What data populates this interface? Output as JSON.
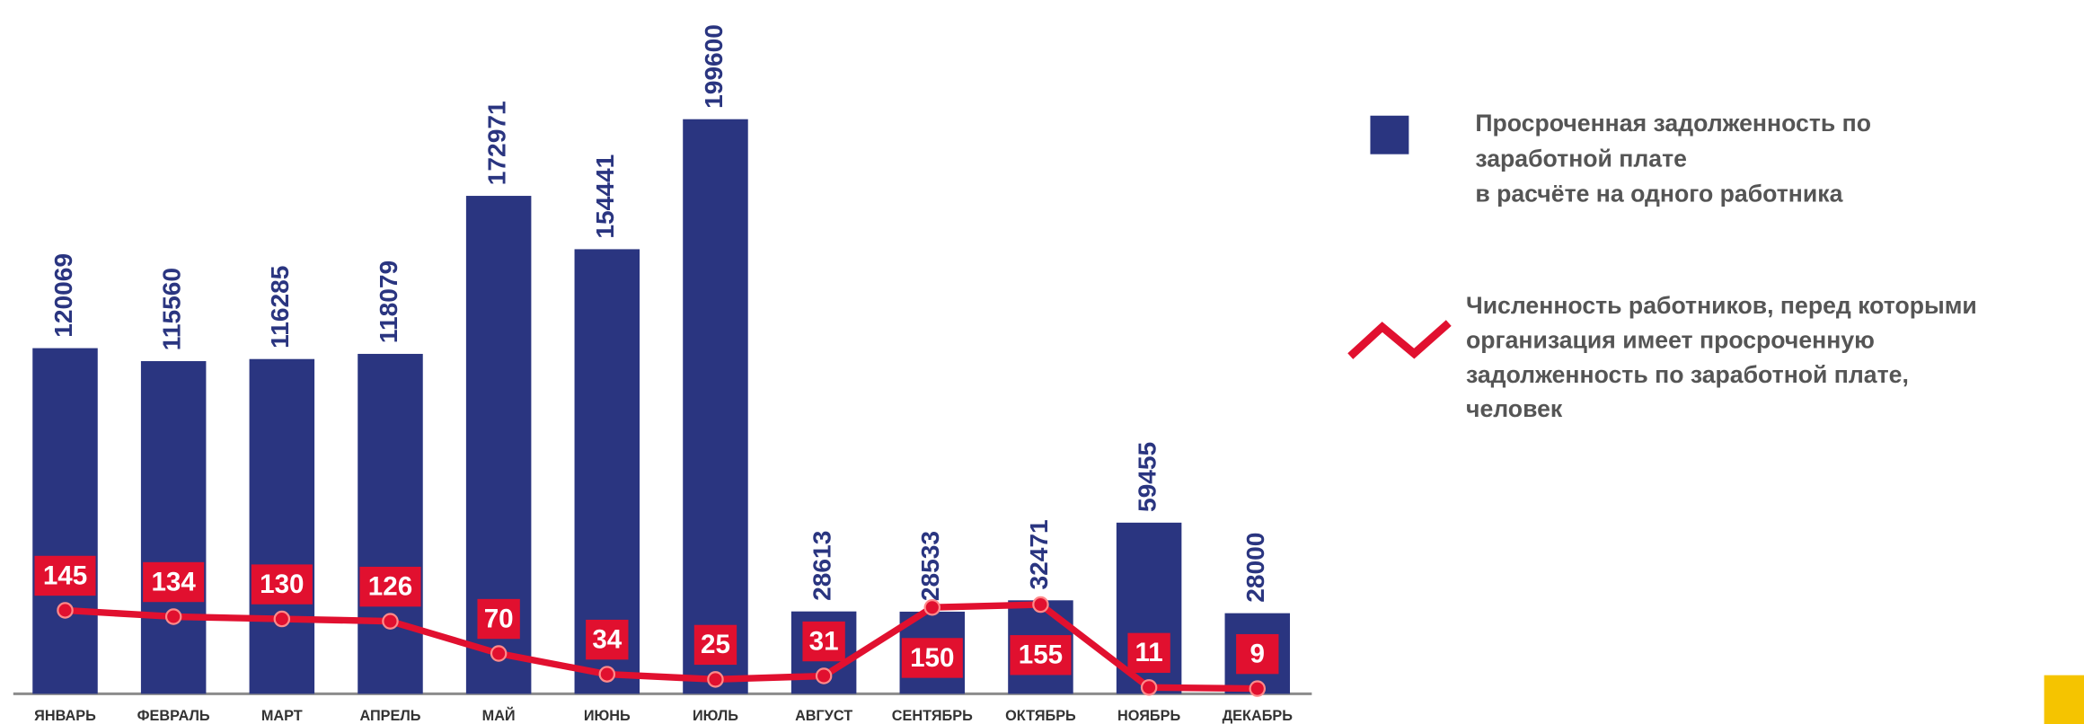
{
  "chart_data": {
    "type": "bar+line",
    "categories": [
      "ЯНВАРЬ",
      "ФЕВРАЛЬ",
      "МАРТ",
      "АПРЕЛЬ",
      "МАЙ",
      "ИЮНЬ",
      "ИЮЛЬ",
      "АВГУСТ",
      "СЕНТЯБРЬ",
      "ОКТЯБРЬ",
      "НОЯБРЬ",
      "ДЕКАБРЬ"
    ],
    "series": [
      {
        "name": "Просроченная задолженность по\nзаработной плате\nв расчёте на одного работника",
        "color": "#2a3580",
        "type": "bar",
        "values": [
          120069,
          115560,
          116285,
          118079,
          172971,
          154441,
          199600,
          28613,
          28533,
          32471,
          59455,
          28000
        ]
      },
      {
        "name": "Численность работников, перед которыми\nорганизация имеет просроченную\nзадолженность по заработной плате,\nчеловек",
        "color": "#e1102f",
        "type": "line",
        "axis": "y2",
        "values": [
          145,
          134,
          130,
          126,
          70,
          34,
          25,
          31,
          150,
          155,
          11,
          9
        ]
      }
    ],
    "ylim": [
      0,
      200000
    ],
    "y2lim": [
      0,
      1000
    ],
    "legend": "right"
  }
}
